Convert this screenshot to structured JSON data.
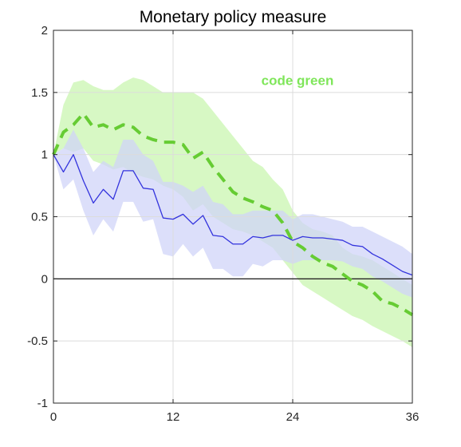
{
  "chart_data": {
    "type": "line",
    "title": "Monetary policy measure",
    "xlabel": "",
    "ylabel": "",
    "xlim": [
      0,
      36
    ],
    "ylim": [
      -1,
      2
    ],
    "x_ticks": [
      0,
      12,
      24,
      36
    ],
    "x_tick_labels": [
      "0",
      "12",
      "24",
      "36"
    ],
    "y_ticks": [
      2,
      1.5,
      1,
      0.5,
      0,
      -0.5,
      -1
    ],
    "y_tick_labels": [
      "2",
      "1.5",
      "1",
      "0.5",
      "0",
      "-0.5",
      "-1"
    ],
    "grid": true,
    "zero_line": true,
    "annotations": [
      {
        "text": "code green",
        "x": 24,
        "y": 1.6,
        "color": "#7fe65a"
      }
    ],
    "x": [
      0,
      1,
      2,
      3,
      4,
      5,
      6,
      7,
      8,
      9,
      10,
      11,
      12,
      13,
      14,
      15,
      16,
      17,
      18,
      19,
      20,
      21,
      22,
      23,
      24,
      25,
      26,
      27,
      28,
      29,
      30,
      31,
      32,
      33,
      34,
      35,
      36
    ],
    "series": [
      {
        "name": "code green",
        "style": "dashed",
        "color": "#66cc33",
        "band_color": "#c9f5b0",
        "values": [
          1.0,
          1.18,
          1.24,
          1.33,
          1.22,
          1.24,
          1.2,
          1.24,
          1.22,
          1.15,
          1.12,
          1.1,
          1.1,
          1.08,
          0.97,
          1.02,
          0.9,
          0.8,
          0.7,
          0.65,
          0.62,
          0.58,
          0.55,
          0.45,
          0.3,
          0.25,
          0.18,
          0.13,
          0.1,
          0.04,
          -0.02,
          -0.05,
          -0.1,
          -0.18,
          -0.2,
          -0.24,
          -0.29
        ],
        "upper": [
          1.0,
          1.4,
          1.58,
          1.6,
          1.55,
          1.52,
          1.52,
          1.58,
          1.62,
          1.6,
          1.55,
          1.5,
          1.5,
          1.5,
          1.5,
          1.45,
          1.35,
          1.25,
          1.15,
          1.05,
          0.95,
          0.9,
          0.8,
          0.72,
          0.55,
          0.45,
          0.4,
          0.38,
          0.35,
          0.25,
          0.2,
          0.18,
          0.15,
          0.1,
          0.05,
          0.0,
          -0.05
        ],
        "lower": [
          1.0,
          1.05,
          1.02,
          1.05,
          0.95,
          0.92,
          0.88,
          0.9,
          0.85,
          0.82,
          0.8,
          0.75,
          0.72,
          0.66,
          0.55,
          0.6,
          0.5,
          0.45,
          0.4,
          0.38,
          0.35,
          0.3,
          0.25,
          0.15,
          0.05,
          -0.05,
          -0.1,
          -0.15,
          -0.2,
          -0.25,
          -0.3,
          -0.33,
          -0.38,
          -0.42,
          -0.46,
          -0.5,
          -0.55
        ]
      },
      {
        "name": "",
        "style": "solid",
        "color": "#3333dd",
        "band_color": "#d0d4f8",
        "values": [
          1.0,
          0.86,
          1.0,
          0.79,
          0.61,
          0.72,
          0.64,
          0.87,
          0.87,
          0.73,
          0.72,
          0.49,
          0.48,
          0.52,
          0.44,
          0.51,
          0.35,
          0.34,
          0.28,
          0.28,
          0.34,
          0.33,
          0.35,
          0.35,
          0.31,
          0.34,
          0.33,
          0.33,
          0.32,
          0.31,
          0.27,
          0.26,
          0.2,
          0.16,
          0.11,
          0.06,
          0.03
        ],
        "upper": [
          1.0,
          1.05,
          1.2,
          1.05,
          0.86,
          0.95,
          0.9,
          1.12,
          1.12,
          1.0,
          0.95,
          0.78,
          0.78,
          0.75,
          0.7,
          0.75,
          0.62,
          0.6,
          0.52,
          0.52,
          0.55,
          0.55,
          0.55,
          0.55,
          0.48,
          0.52,
          0.52,
          0.5,
          0.48,
          0.46,
          0.42,
          0.42,
          0.38,
          0.34,
          0.3,
          0.26,
          0.2
        ],
        "lower": [
          1.0,
          0.72,
          0.8,
          0.55,
          0.35,
          0.48,
          0.38,
          0.62,
          0.62,
          0.46,
          0.48,
          0.2,
          0.18,
          0.28,
          0.18,
          0.25,
          0.08,
          0.08,
          0.02,
          0.02,
          0.12,
          0.1,
          0.15,
          0.15,
          0.12,
          0.15,
          0.15,
          0.15,
          0.15,
          0.14,
          0.1,
          0.08,
          0.02,
          -0.02,
          -0.07,
          -0.12,
          -0.15
        ]
      }
    ]
  }
}
